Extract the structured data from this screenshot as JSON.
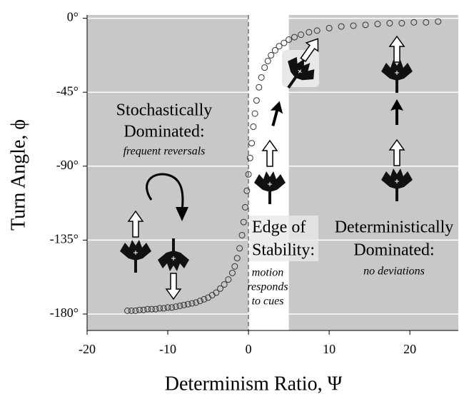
{
  "chart_data": {
    "type": "scatter",
    "x_label": "Determinism Ratio, Ψ",
    "y_label": "Turn Angle, ϕ",
    "x": [
      -15,
      -14.5,
      -14,
      -13.5,
      -13,
      -12.5,
      -12,
      -11.5,
      -11,
      -10.5,
      -10,
      -9.5,
      -9,
      -8.5,
      -8,
      -7.5,
      -7,
      -6.5,
      -6,
      -5.5,
      -5,
      -4.5,
      -4,
      -3.5,
      -3,
      -2.5,
      -2,
      -1.7,
      -1.4,
      -1.1,
      -0.8,
      -0.6,
      -0.4,
      -0.2,
      0,
      0.2,
      0.4,
      0.6,
      0.8,
      1,
      1.3,
      1.6,
      2,
      2.4,
      2.8,
      3.3,
      3.8,
      4.4,
      5,
      5.7,
      6.5,
      7.5,
      8.5,
      10,
      11.5,
      13,
      14.5,
      16,
      17.5,
      19,
      20.5,
      22,
      23.5
    ],
    "values": [
      -178,
      -178,
      -178,
      -177.5,
      -177.5,
      -177,
      -177,
      -177,
      -176.5,
      -176.5,
      -176,
      -176,
      -175.5,
      -175,
      -174.5,
      -174,
      -173.5,
      -173,
      -172,
      -171,
      -170,
      -168.5,
      -167,
      -164.5,
      -162,
      -159,
      -155,
      -151,
      -146,
      -140,
      -132,
      -124,
      -115,
      -105,
      -95,
      -85,
      -76,
      -66,
      -58,
      -50,
      -42,
      -36,
      -30,
      -26,
      -22.5,
      -19.5,
      -17,
      -15,
      -13,
      -11.5,
      -10,
      -8.5,
      -7.5,
      -6,
      -5,
      -4.5,
      -4,
      -3.5,
      -3,
      -3,
      -2.5,
      -2.5,
      -2
    ],
    "color": "#333333",
    "xlim": [
      -20,
      26
    ],
    "ylim": [
      -190,
      2
    ],
    "xticks": [
      -20,
      -10,
      0,
      10,
      20
    ],
    "yticks": [
      {
        "value": 0,
        "label": "0°"
      },
      {
        "value": -45,
        "label": "-45°"
      },
      {
        "value": -90,
        "label": "-90°"
      },
      {
        "value": -135,
        "label": "-135°"
      },
      {
        "value": -180,
        "label": "-180°"
      }
    ],
    "grid": true,
    "shaded_regions": [
      [
        -20,
        0
      ],
      [
        5,
        26
      ]
    ],
    "reference_line_x": 0,
    "annotations": {
      "stochastic": {
        "title": [
          "Stochastically",
          "Dominated:"
        ],
        "note": "frequent reversals"
      },
      "edge": {
        "title": [
          "Edge of",
          "Stability:"
        ],
        "note": [
          "motion",
          "responds",
          "to cues"
        ]
      },
      "deterministic": {
        "title": [
          "Deterministically",
          "Dominated:"
        ],
        "note": "no deviations"
      }
    }
  }
}
